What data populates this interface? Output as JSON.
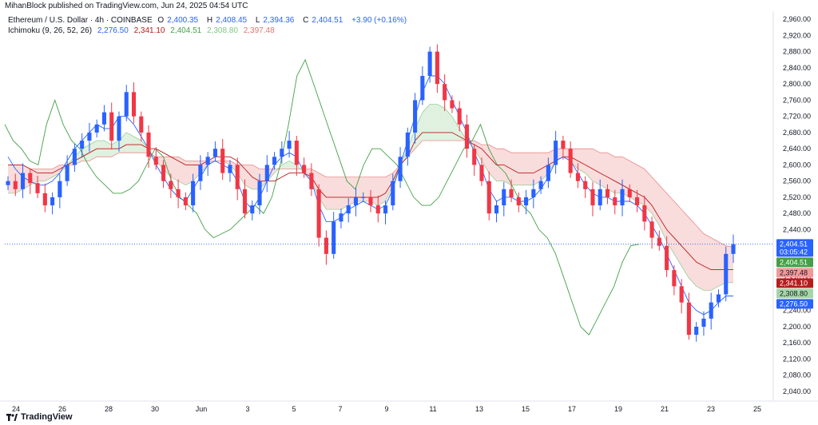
{
  "header": {
    "publisher": "MihanBlock published on TradingView.com, Jun 24, 2025 04:54 UTC"
  },
  "legend_main": {
    "symbol": "Ethereum / U.S. Dollar · 4h · COINBASE",
    "o_label": "O",
    "o": "2,400.35",
    "h_label": "H",
    "h": "2,408.45",
    "l_label": "L",
    "l": "2,394.36",
    "c_label": "C",
    "c": "2,404.51",
    "change": "+3.90 (+0.16%)"
  },
  "legend_ichimoku": {
    "name": "Ichimoku (9, 26, 52, 26)",
    "v1": "2,276.50",
    "v2": "2,341.10",
    "v3": "2,404.51",
    "v4": "2,308.80",
    "v5": "2,397.48"
  },
  "footer": {
    "brand": "TradingView"
  },
  "colors": {
    "up": "#26a69a",
    "up_candle": "#2962ff",
    "down": "#f23645",
    "conversion": "#2962ff",
    "base": "#b71c1c",
    "lagging": "#43a047",
    "cloud_green": "#a5d6a7",
    "cloud_red": "#ef9a9a",
    "last_price": "#2962ff"
  },
  "chart_data": {
    "type": "candlestick",
    "ylim": [
      2040,
      2980
    ],
    "y_ticks": [
      "2,040.00",
      "2,080.00",
      "2,120.00",
      "2,160.00",
      "2,200.00",
      "2,240.00",
      "2,280.00",
      "2,320.00",
      "2,360.00",
      "2,400.00",
      "2,440.00",
      "2,480.00",
      "2,520.00",
      "2,560.00",
      "2,600.00",
      "2,640.00",
      "2,680.00",
      "2,720.00",
      "2,760.00",
      "2,800.00",
      "2,840.00",
      "2,880.00",
      "2,920.00",
      "2,960.00"
    ],
    "x_ticks": [
      "24",
      "26",
      "28",
      "30",
      "Jun",
      "3",
      "5",
      "7",
      "9",
      "11",
      "13",
      "15",
      "17",
      "19",
      "21",
      "23",
      "25"
    ],
    "price_tags": [
      {
        "value": 2404.51,
        "label": "2,404.51",
        "sub": "03:05:42",
        "color": "#2962ff"
      },
      {
        "value": 2404.51,
        "label": "2,404.51",
        "color": "#43a047"
      },
      {
        "value": 2397.48,
        "label": "2,397.48",
        "color": "#ef9a9a"
      },
      {
        "value": 2341.1,
        "label": "2,341.10",
        "color": "#b71c1c"
      },
      {
        "value": 2308.8,
        "label": "2,308.80",
        "color": "#a5d6a7"
      },
      {
        "value": 2276.5,
        "label": "2,276.50",
        "color": "#2962ff"
      }
    ],
    "closes_anchor": [
      2560,
      2540,
      2580,
      2555,
      2530,
      2500,
      2520,
      2560,
      2600,
      2640,
      2660,
      2680,
      2700,
      2730,
      2660,
      2720,
      2780,
      2720,
      2680,
      2620,
      2600,
      2560,
      2540,
      2520,
      2500,
      2560,
      2600,
      2620,
      2640,
      2580,
      2600,
      2540,
      2480,
      2500,
      2560,
      2600,
      2620,
      2640,
      2660,
      2600,
      2580,
      2540,
      2420,
      2380,
      2460,
      2480,
      2500,
      2520,
      2520,
      2500,
      2480,
      2500,
      2560,
      2620,
      2680,
      2760,
      2820,
      2880,
      2800,
      2760,
      2740,
      2700,
      2640,
      2600,
      2560,
      2480,
      2500,
      2540,
      2520,
      2500,
      2520,
      2540,
      2560,
      2600,
      2660,
      2640,
      2580,
      2560,
      2540,
      2500,
      2540,
      2520,
      2500,
      2540,
      2520,
      2500,
      2460,
      2420,
      2400,
      2340,
      2300,
      2260,
      2180,
      2200,
      2220,
      2260,
      2280,
      2380,
      2404
    ],
    "conversion": [
      2620,
      2590,
      2570,
      2560,
      2550,
      2550,
      2560,
      2580,
      2610,
      2640,
      2660,
      2680,
      2700,
      2690,
      2690,
      2720,
      2720,
      2700,
      2670,
      2640,
      2600,
      2570,
      2540,
      2520,
      2510,
      2540,
      2570,
      2600,
      2610,
      2600,
      2590,
      2560,
      2510,
      2490,
      2520,
      2560,
      2600,
      2620,
      2630,
      2620,
      2580,
      2560,
      2500,
      2460,
      2460,
      2470,
      2490,
      2500,
      2510,
      2500,
      2490,
      2500,
      2540,
      2600,
      2660,
      2720,
      2780,
      2820,
      2820,
      2800,
      2760,
      2720,
      2680,
      2630,
      2590,
      2540,
      2510,
      2520,
      2520,
      2510,
      2510,
      2520,
      2540,
      2570,
      2610,
      2620,
      2610,
      2580,
      2550,
      2530,
      2520,
      2520,
      2510,
      2510,
      2510,
      2500,
      2480,
      2450,
      2420,
      2380,
      2340,
      2300,
      2260,
      2240,
      2230,
      2240,
      2260,
      2276,
      2276
    ],
    "base": [
      2600,
      2600,
      2600,
      2590,
      2580,
      2580,
      2580,
      2590,
      2600,
      2610,
      2620,
      2630,
      2640,
      2640,
      2640,
      2640,
      2650,
      2650,
      2650,
      2640,
      2640,
      2630,
      2620,
      2610,
      2600,
      2600,
      2600,
      2610,
      2620,
      2620,
      2620,
      2610,
      2590,
      2570,
      2560,
      2560,
      2560,
      2570,
      2580,
      2580,
      2580,
      2570,
      2540,
      2520,
      2520,
      2520,
      2520,
      2520,
      2520,
      2520,
      2520,
      2530,
      2560,
      2600,
      2620,
      2660,
      2680,
      2680,
      2680,
      2680,
      2680,
      2670,
      2660,
      2650,
      2640,
      2620,
      2600,
      2600,
      2590,
      2580,
      2580,
      2580,
      2590,
      2600,
      2610,
      2620,
      2620,
      2610,
      2600,
      2590,
      2580,
      2570,
      2560,
      2550,
      2540,
      2530,
      2520,
      2500,
      2470,
      2440,
      2420,
      2400,
      2380,
      2360,
      2350,
      2341,
      2341,
      2341,
      2341
    ],
    "lagging": [
      2700,
      2660,
      2640,
      2610,
      2600,
      2700,
      2760,
      2700,
      2660,
      2640,
      2600,
      2570,
      2550,
      2530,
      2530,
      2540,
      2560,
      2600,
      2640,
      2620,
      2560,
      2520,
      2500,
      2480,
      2440,
      2420,
      2430,
      2440,
      2460,
      2480,
      2500,
      2480,
      2520,
      2600,
      2700,
      2820,
      2860,
      2800,
      2740,
      2680,
      2620,
      2560,
      2540,
      2600,
      2640,
      2640,
      2620,
      2600,
      2560,
      2520,
      2500,
      2500,
      2520,
      2560,
      2600,
      2640,
      2660,
      2700,
      2640,
      2600,
      2580,
      2540,
      2500,
      2480,
      2440,
      2420,
      2380,
      2320,
      2260,
      2200,
      2180,
      2220,
      2260,
      2300,
      2360,
      2400,
      2404
    ],
    "span_a": [
      2530,
      2530,
      2540,
      2550,
      2560,
      2560,
      2570,
      2580,
      2600,
      2620,
      2640,
      2650,
      2660,
      2660,
      2650,
      2660,
      2680,
      2670,
      2660,
      2640,
      2610,
      2590,
      2570,
      2560,
      2550,
      2560,
      2580,
      2600,
      2610,
      2610,
      2600,
      2580,
      2550,
      2540,
      2540,
      2560,
      2580,
      2600,
      2610,
      2600,
      2580,
      2560,
      2520,
      2490,
      2490,
      2490,
      2500,
      2510,
      2510,
      2510,
      2500,
      2510,
      2550,
      2600,
      2640,
      2690,
      2730,
      2750,
      2750,
      2740,
      2720,
      2690,
      2660,
      2640,
      2610,
      2580,
      2560,
      2560,
      2550,
      2550,
      2550,
      2550,
      2560,
      2580,
      2610,
      2620,
      2610,
      2590,
      2580,
      2560,
      2550,
      2540,
      2530,
      2530,
      2520,
      2510,
      2500,
      2480,
      2450,
      2410,
      2380,
      2350,
      2320,
      2300,
      2290,
      2290,
      2300,
      2309,
      2309
    ],
    "span_b": [
      2600,
      2600,
      2600,
      2590,
      2590,
      2590,
      2590,
      2600,
      2600,
      2600,
      2610,
      2610,
      2620,
      2620,
      2620,
      2630,
      2630,
      2630,
      2630,
      2630,
      2620,
      2620,
      2620,
      2620,
      2610,
      2610,
      2610,
      2610,
      2610,
      2610,
      2610,
      2600,
      2600,
      2600,
      2590,
      2590,
      2590,
      2590,
      2590,
      2590,
      2590,
      2590,
      2580,
      2570,
      2570,
      2570,
      2570,
      2570,
      2570,
      2570,
      2570,
      2570,
      2580,
      2600,
      2620,
      2640,
      2660,
      2660,
      2660,
      2660,
      2660,
      2660,
      2660,
      2660,
      2650,
      2650,
      2640,
      2640,
      2630,
      2630,
      2630,
      2630,
      2630,
      2630,
      2640,
      2640,
      2640,
      2640,
      2640,
      2640,
      2630,
      2630,
      2620,
      2620,
      2610,
      2600,
      2590,
      2570,
      2550,
      2530,
      2510,
      2490,
      2470,
      2450,
      2430,
      2420,
      2410,
      2400,
      2397
    ]
  }
}
